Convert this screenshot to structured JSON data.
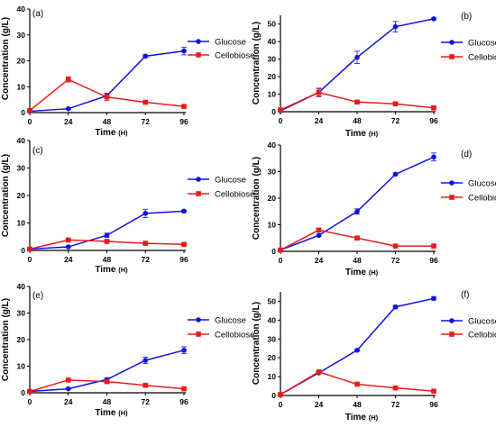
{
  "chart_data": [
    {
      "type": "line",
      "panel_label": "(a)",
      "x": [
        0,
        24,
        48,
        72,
        96
      ],
      "xlabel": "Time",
      "xlabel_unit": "(H)",
      "ylabel": "Concentration (g/L)",
      "ylim": [
        0,
        40
      ],
      "yticks": [
        0,
        10,
        20,
        30,
        40
      ],
      "legend_position": "right-middle",
      "series": [
        {
          "name": "Glucose",
          "color": "#1010e8",
          "marker": "circle",
          "values": [
            0.5,
            1.5,
            6.5,
            21.8,
            23.8
          ],
          "errors": [
            0.3,
            0.3,
            1.0,
            0.5,
            1.5
          ]
        },
        {
          "name": "Cellobiose",
          "color": "#e81c1c",
          "marker": "square",
          "values": [
            0.8,
            12.8,
            6.0,
            4.0,
            2.4
          ],
          "errors": [
            0.3,
            1.0,
            1.3,
            0.4,
            0.3
          ]
        }
      ]
    },
    {
      "type": "line",
      "panel_label": "(b)",
      "x": [
        0,
        24,
        48,
        72,
        96
      ],
      "xlabel": "Time",
      "xlabel_unit": "(H)",
      "ylabel": "Concentration (g/L)",
      "ylim": [
        0,
        55
      ],
      "yticks": [
        0,
        10,
        20,
        30,
        40,
        50
      ],
      "legend_position": "right-middle",
      "series": [
        {
          "name": "Glucose",
          "color": "#1010e8",
          "marker": "circle",
          "values": [
            0.5,
            11.0,
            31.0,
            48.5,
            53.0
          ],
          "errors": [
            0.3,
            2.0,
            3.5,
            3.0,
            0.5
          ]
        },
        {
          "name": "Cellobiose",
          "color": "#e81c1c",
          "marker": "square",
          "values": [
            1.0,
            11.0,
            5.5,
            4.5,
            2.2
          ],
          "errors": [
            0.3,
            2.5,
            0.5,
            0.5,
            0.3
          ]
        }
      ]
    },
    {
      "type": "line",
      "panel_label": "(c)",
      "x": [
        0,
        24,
        48,
        72,
        96
      ],
      "xlabel": "Time",
      "xlabel_unit": "(H)",
      "ylabel": "Concentration (g/L)",
      "ylim": [
        0,
        40
      ],
      "yticks": [
        0,
        10,
        20,
        30,
        40
      ],
      "legend_position": "right-middle",
      "series": [
        {
          "name": "Glucose",
          "color": "#1010e8",
          "marker": "circle",
          "values": [
            0.5,
            1.3,
            5.5,
            13.5,
            14.3
          ],
          "errors": [
            0.2,
            0.3,
            0.8,
            1.5,
            0.4
          ]
        },
        {
          "name": "Cellobiose",
          "color": "#e81c1c",
          "marker": "square",
          "values": [
            0.5,
            3.8,
            3.3,
            2.6,
            2.2
          ],
          "errors": [
            0.2,
            0.3,
            0.4,
            0.3,
            0.3
          ]
        }
      ]
    },
    {
      "type": "line",
      "panel_label": "(d)",
      "x": [
        0,
        24,
        48,
        72,
        96
      ],
      "xlabel": "Time",
      "xlabel_unit": "(H)",
      "ylabel": "Concentration (g/L)",
      "ylim": [
        0,
        40
      ],
      "yticks": [
        0,
        10,
        20,
        30,
        40
      ],
      "legend_position": "right-middle",
      "series": [
        {
          "name": "Glucose",
          "color": "#1010e8",
          "marker": "circle",
          "values": [
            0.5,
            6.0,
            15.0,
            29.0,
            35.5
          ],
          "errors": [
            0.2,
            0.5,
            1.0,
            0.5,
            1.5
          ]
        },
        {
          "name": "Cellobiose",
          "color": "#e81c1c",
          "marker": "square",
          "values": [
            0.5,
            8.0,
            5.0,
            2.0,
            2.0
          ],
          "errors": [
            0.2,
            0.5,
            0.4,
            0.3,
            0.3
          ]
        }
      ]
    },
    {
      "type": "line",
      "panel_label": "(e)",
      "x": [
        0,
        24,
        48,
        72,
        96
      ],
      "xlabel": "Time",
      "xlabel_unit": "(H)",
      "ylabel": "Concentration (g/L)",
      "ylim": [
        0,
        40
      ],
      "yticks": [
        0,
        10,
        20,
        30,
        40
      ],
      "legend_position": "right-middle",
      "series": [
        {
          "name": "Glucose",
          "color": "#1010e8",
          "marker": "circle",
          "values": [
            0.5,
            1.5,
            5.0,
            12.2,
            16.0
          ],
          "errors": [
            0.2,
            0.3,
            0.6,
            1.2,
            1.3
          ]
        },
        {
          "name": "Cellobiose",
          "color": "#e81c1c",
          "marker": "square",
          "values": [
            0.5,
            4.8,
            4.2,
            2.8,
            1.5
          ],
          "errors": [
            0.2,
            0.3,
            0.4,
            0.3,
            0.3
          ]
        }
      ]
    },
    {
      "type": "line",
      "panel_label": "(f)",
      "x": [
        0,
        24,
        48,
        72,
        96
      ],
      "xlabel": "Time",
      "xlabel_unit": "(H)",
      "ylabel": "Concentration (g/L)",
      "ylim": [
        0,
        55
      ],
      "yticks": [
        0,
        10,
        20,
        30,
        40,
        50
      ],
      "legend_position": "right-middle",
      "series": [
        {
          "name": "Glucose",
          "color": "#1010e8",
          "marker": "circle",
          "values": [
            0.5,
            12.0,
            24.0,
            47.0,
            51.5
          ],
          "errors": [
            0.2,
            0.5,
            0.5,
            0.8,
            0.8
          ]
        },
        {
          "name": "Cellobiose",
          "color": "#e81c1c",
          "marker": "square",
          "values": [
            0.5,
            12.5,
            6.0,
            4.0,
            2.3
          ],
          "errors": [
            0.2,
            0.5,
            0.4,
            0.4,
            0.3
          ]
        }
      ]
    }
  ]
}
